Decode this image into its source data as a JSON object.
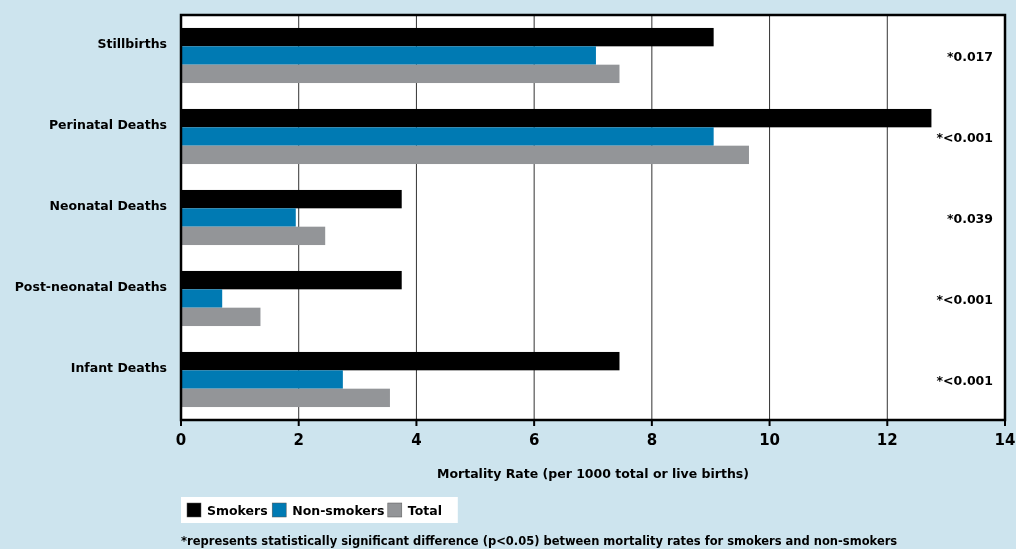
{
  "chart_data": {
    "type": "bar",
    "orientation": "horizontal",
    "xlabel": "Mortality Rate (per 1000 total or live births)",
    "categories": [
      "Stillbirths",
      "Perinatal Deaths",
      "Neonatal Deaths",
      "Post-neonatal Deaths",
      "Infant Deaths"
    ],
    "series": [
      {
        "name": "Smokers",
        "color": "#000000",
        "values": [
          9.05,
          12.75,
          3.75,
          3.75,
          7.45
        ]
      },
      {
        "name": "Non-smokers",
        "color": "#007ab3",
        "values": [
          7.05,
          9.05,
          1.95,
          0.7,
          2.75
        ]
      },
      {
        "name": "Total",
        "color": "#939598",
        "values": [
          7.45,
          9.65,
          2.45,
          1.35,
          3.55
        ]
      }
    ],
    "xlim": [
      0,
      14
    ],
    "xticks": [
      0,
      2,
      4,
      6,
      8,
      10,
      12,
      14
    ],
    "grid": "x",
    "legend": "bottom",
    "annotations": [
      "*0.017",
      "*<0.001",
      "*0.039",
      "*<0.001",
      "*<0.001",
      "*represents statistically significant difference (p<0.05) between mortality rates for smokers and non-smokers"
    ]
  }
}
